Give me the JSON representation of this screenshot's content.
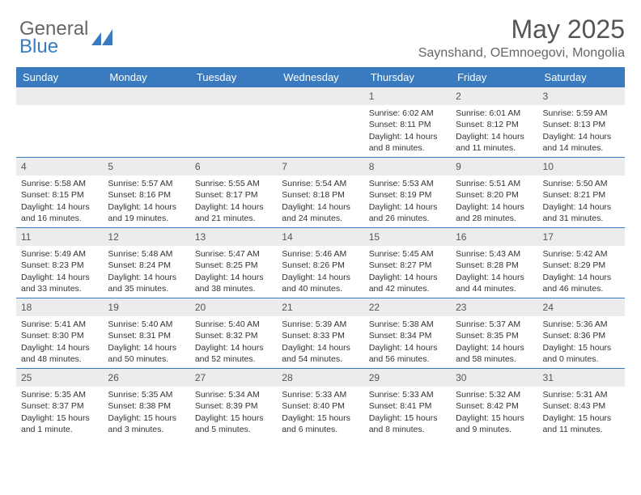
{
  "brand": {
    "name1": "General",
    "name2": "Blue"
  },
  "title": "May 2025",
  "location": "Saynshand, OEmnoegovi, Mongolia",
  "colors": {
    "header_bg": "#3a7bbf",
    "header_text": "#ffffff",
    "daynum_bg": "#ececec",
    "border": "#3a7bbf",
    "text": "#333333",
    "title_text": "#555555"
  },
  "day_names": [
    "Sunday",
    "Monday",
    "Tuesday",
    "Wednesday",
    "Thursday",
    "Friday",
    "Saturday"
  ],
  "weeks": [
    [
      null,
      null,
      null,
      null,
      {
        "n": "1",
        "sr": "Sunrise: 6:02 AM",
        "ss": "Sunset: 8:11 PM",
        "dl": "Daylight: 14 hours and 8 minutes."
      },
      {
        "n": "2",
        "sr": "Sunrise: 6:01 AM",
        "ss": "Sunset: 8:12 PM",
        "dl": "Daylight: 14 hours and 11 minutes."
      },
      {
        "n": "3",
        "sr": "Sunrise: 5:59 AM",
        "ss": "Sunset: 8:13 PM",
        "dl": "Daylight: 14 hours and 14 minutes."
      }
    ],
    [
      {
        "n": "4",
        "sr": "Sunrise: 5:58 AM",
        "ss": "Sunset: 8:15 PM",
        "dl": "Daylight: 14 hours and 16 minutes."
      },
      {
        "n": "5",
        "sr": "Sunrise: 5:57 AM",
        "ss": "Sunset: 8:16 PM",
        "dl": "Daylight: 14 hours and 19 minutes."
      },
      {
        "n": "6",
        "sr": "Sunrise: 5:55 AM",
        "ss": "Sunset: 8:17 PM",
        "dl": "Daylight: 14 hours and 21 minutes."
      },
      {
        "n": "7",
        "sr": "Sunrise: 5:54 AM",
        "ss": "Sunset: 8:18 PM",
        "dl": "Daylight: 14 hours and 24 minutes."
      },
      {
        "n": "8",
        "sr": "Sunrise: 5:53 AM",
        "ss": "Sunset: 8:19 PM",
        "dl": "Daylight: 14 hours and 26 minutes."
      },
      {
        "n": "9",
        "sr": "Sunrise: 5:51 AM",
        "ss": "Sunset: 8:20 PM",
        "dl": "Daylight: 14 hours and 28 minutes."
      },
      {
        "n": "10",
        "sr": "Sunrise: 5:50 AM",
        "ss": "Sunset: 8:21 PM",
        "dl": "Daylight: 14 hours and 31 minutes."
      }
    ],
    [
      {
        "n": "11",
        "sr": "Sunrise: 5:49 AM",
        "ss": "Sunset: 8:23 PM",
        "dl": "Daylight: 14 hours and 33 minutes."
      },
      {
        "n": "12",
        "sr": "Sunrise: 5:48 AM",
        "ss": "Sunset: 8:24 PM",
        "dl": "Daylight: 14 hours and 35 minutes."
      },
      {
        "n": "13",
        "sr": "Sunrise: 5:47 AM",
        "ss": "Sunset: 8:25 PM",
        "dl": "Daylight: 14 hours and 38 minutes."
      },
      {
        "n": "14",
        "sr": "Sunrise: 5:46 AM",
        "ss": "Sunset: 8:26 PM",
        "dl": "Daylight: 14 hours and 40 minutes."
      },
      {
        "n": "15",
        "sr": "Sunrise: 5:45 AM",
        "ss": "Sunset: 8:27 PM",
        "dl": "Daylight: 14 hours and 42 minutes."
      },
      {
        "n": "16",
        "sr": "Sunrise: 5:43 AM",
        "ss": "Sunset: 8:28 PM",
        "dl": "Daylight: 14 hours and 44 minutes."
      },
      {
        "n": "17",
        "sr": "Sunrise: 5:42 AM",
        "ss": "Sunset: 8:29 PM",
        "dl": "Daylight: 14 hours and 46 minutes."
      }
    ],
    [
      {
        "n": "18",
        "sr": "Sunrise: 5:41 AM",
        "ss": "Sunset: 8:30 PM",
        "dl": "Daylight: 14 hours and 48 minutes."
      },
      {
        "n": "19",
        "sr": "Sunrise: 5:40 AM",
        "ss": "Sunset: 8:31 PM",
        "dl": "Daylight: 14 hours and 50 minutes."
      },
      {
        "n": "20",
        "sr": "Sunrise: 5:40 AM",
        "ss": "Sunset: 8:32 PM",
        "dl": "Daylight: 14 hours and 52 minutes."
      },
      {
        "n": "21",
        "sr": "Sunrise: 5:39 AM",
        "ss": "Sunset: 8:33 PM",
        "dl": "Daylight: 14 hours and 54 minutes."
      },
      {
        "n": "22",
        "sr": "Sunrise: 5:38 AM",
        "ss": "Sunset: 8:34 PM",
        "dl": "Daylight: 14 hours and 56 minutes."
      },
      {
        "n": "23",
        "sr": "Sunrise: 5:37 AM",
        "ss": "Sunset: 8:35 PM",
        "dl": "Daylight: 14 hours and 58 minutes."
      },
      {
        "n": "24",
        "sr": "Sunrise: 5:36 AM",
        "ss": "Sunset: 8:36 PM",
        "dl": "Daylight: 15 hours and 0 minutes."
      }
    ],
    [
      {
        "n": "25",
        "sr": "Sunrise: 5:35 AM",
        "ss": "Sunset: 8:37 PM",
        "dl": "Daylight: 15 hours and 1 minute."
      },
      {
        "n": "26",
        "sr": "Sunrise: 5:35 AM",
        "ss": "Sunset: 8:38 PM",
        "dl": "Daylight: 15 hours and 3 minutes."
      },
      {
        "n": "27",
        "sr": "Sunrise: 5:34 AM",
        "ss": "Sunset: 8:39 PM",
        "dl": "Daylight: 15 hours and 5 minutes."
      },
      {
        "n": "28",
        "sr": "Sunrise: 5:33 AM",
        "ss": "Sunset: 8:40 PM",
        "dl": "Daylight: 15 hours and 6 minutes."
      },
      {
        "n": "29",
        "sr": "Sunrise: 5:33 AM",
        "ss": "Sunset: 8:41 PM",
        "dl": "Daylight: 15 hours and 8 minutes."
      },
      {
        "n": "30",
        "sr": "Sunrise: 5:32 AM",
        "ss": "Sunset: 8:42 PM",
        "dl": "Daylight: 15 hours and 9 minutes."
      },
      {
        "n": "31",
        "sr": "Sunrise: 5:31 AM",
        "ss": "Sunset: 8:43 PM",
        "dl": "Daylight: 15 hours and 11 minutes."
      }
    ]
  ]
}
